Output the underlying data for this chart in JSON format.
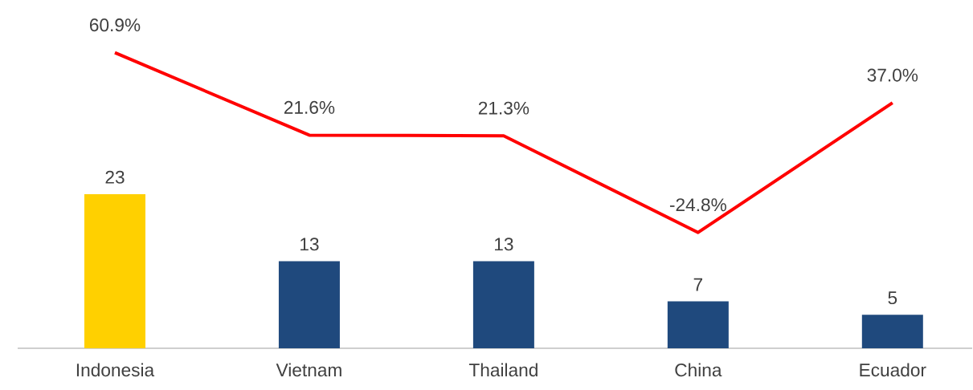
{
  "chart_data": {
    "type": "bar",
    "categories": [
      "Indonesia",
      "Vietnam",
      "Thailand",
      "China",
      "Ecuador"
    ],
    "series": [
      {
        "colors": [
          "#ffd000",
          "#1f497d",
          "#1f497d",
          "#1f497d",
          "#1f497d"
        ],
        "values": [
          23,
          13,
          13,
          7,
          5
        ],
        "value_labels": [
          "23",
          "13",
          "13",
          "7",
          "5"
        ]
      },
      {
        "type": "line",
        "axis": "y2",
        "color": "#ff0000",
        "values": [
          60.9,
          21.6,
          21.3,
          -24.8,
          37.0
        ],
        "value_labels": [
          "60.9%",
          "21.6%",
          "21.3%",
          "-24.8%",
          "37.0%"
        ]
      }
    ],
    "marker": "none",
    "line_style": "solid"
  }
}
